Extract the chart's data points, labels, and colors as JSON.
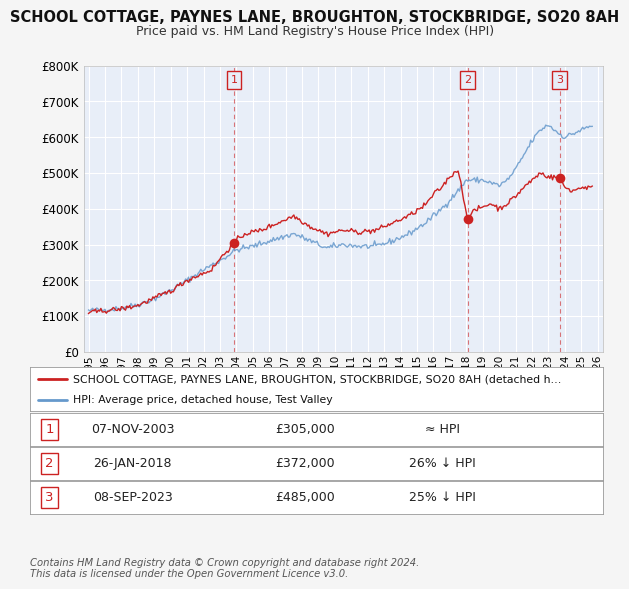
{
  "title": "SCHOOL COTTAGE, PAYNES LANE, BROUGHTON, STOCKBRIDGE, SO20 8AH",
  "subtitle": "Price paid vs. HM Land Registry's House Price Index (HPI)",
  "ylim": [
    0,
    800000
  ],
  "yticks": [
    0,
    100000,
    200000,
    300000,
    400000,
    500000,
    600000,
    700000,
    800000
  ],
  "ytick_labels": [
    "£0",
    "£100K",
    "£200K",
    "£300K",
    "£400K",
    "£500K",
    "£600K",
    "£700K",
    "£800K"
  ],
  "xlim_start": 1994.7,
  "xlim_end": 2026.3,
  "fig_bg": "#f5f5f5",
  "plot_bg": "#e8eef8",
  "grid_color": "#ffffff",
  "hpi_line_color": "#6699cc",
  "sale_line_color": "#cc2222",
  "sale_points": [
    {
      "year": 2003.854,
      "value": 305000,
      "label": "1"
    },
    {
      "year": 2018.074,
      "value": 372000,
      "label": "2"
    },
    {
      "year": 2023.678,
      "value": 485000,
      "label": "3"
    }
  ],
  "legend_sale_label": "SCHOOL COTTAGE, PAYNES LANE, BROUGHTON, STOCKBRIDGE, SO20 8AH (detached h…",
  "legend_hpi_label": "HPI: Average price, detached house, Test Valley",
  "table_rows": [
    {
      "num": "1",
      "date": "07-NOV-2003",
      "price": "£305,000",
      "vs_hpi": "≈ HPI"
    },
    {
      "num": "2",
      "date": "26-JAN-2018",
      "price": "£372,000",
      "vs_hpi": "26% ↓ HPI"
    },
    {
      "num": "3",
      "date": "08-SEP-2023",
      "price": "£485,000",
      "vs_hpi": "25% ↓ HPI"
    }
  ],
  "footer": "Contains HM Land Registry data © Crown copyright and database right 2024.\nThis data is licensed under the Open Government Licence v3.0.",
  "hpi_anchors_years": [
    1995.0,
    1996.0,
    1997.0,
    1998.0,
    1999.0,
    2000.0,
    2001.0,
    2002.0,
    2003.0,
    2004.0,
    2005.0,
    2006.0,
    2007.5,
    2008.5,
    2009.5,
    2010.5,
    2011.5,
    2012.5,
    2013.5,
    2014.5,
    2015.5,
    2016.5,
    2017.5,
    2018.0,
    2019.0,
    2020.0,
    2020.5,
    2021.0,
    2021.5,
    2022.0,
    2022.5,
    2023.0,
    2023.5,
    2024.0,
    2024.5,
    2025.0,
    2025.5
  ],
  "hpi_anchors_vals": [
    115000,
    118000,
    122000,
    132000,
    148000,
    172000,
    200000,
    230000,
    255000,
    285000,
    295000,
    310000,
    330000,
    310000,
    290000,
    300000,
    295000,
    295000,
    310000,
    330000,
    360000,
    400000,
    450000,
    480000,
    480000,
    465000,
    480000,
    510000,
    550000,
    590000,
    620000,
    635000,
    615000,
    600000,
    610000,
    620000,
    630000
  ],
  "prop_anchors_years": [
    1995.0,
    1996.0,
    1997.0,
    1998.0,
    1999.0,
    2000.0,
    2001.0,
    2002.5,
    2003.0,
    2003.854,
    2004.5,
    2005.5,
    2006.5,
    2007.5,
    2008.5,
    2009.5,
    2010.5,
    2011.5,
    2012.5,
    2013.5,
    2014.5,
    2015.5,
    2016.0,
    2016.5,
    2017.0,
    2017.5,
    2018.074,
    2018.5,
    2019.0,
    2019.5,
    2020.0,
    2020.5,
    2021.0,
    2021.5,
    2022.0,
    2022.5,
    2023.0,
    2023.678,
    2024.0,
    2024.5,
    2025.0
  ],
  "prop_anchors_vals": [
    110000,
    115000,
    120000,
    130000,
    150000,
    170000,
    200000,
    230000,
    260000,
    305000,
    330000,
    340000,
    360000,
    380000,
    350000,
    330000,
    340000,
    335000,
    340000,
    360000,
    380000,
    410000,
    440000,
    460000,
    490000,
    510000,
    372000,
    395000,
    405000,
    415000,
    400000,
    415000,
    435000,
    460000,
    480000,
    500000,
    490000,
    485000,
    460000,
    450000,
    460000
  ]
}
